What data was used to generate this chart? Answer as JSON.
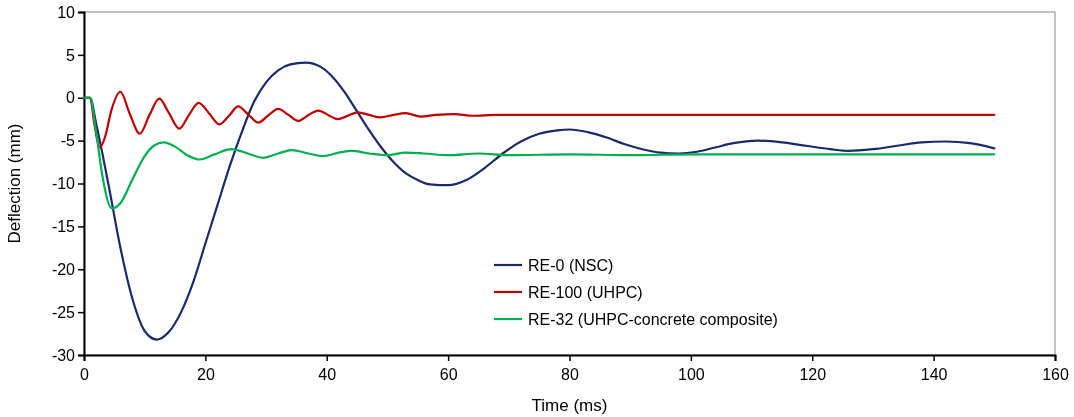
{
  "chart_data": {
    "type": "line",
    "xlabel": "Time (ms)",
    "ylabel": "Deflection (mm)",
    "xlim": [
      0,
      160
    ],
    "xticks": [
      0,
      20,
      40,
      60,
      80,
      100,
      120,
      140,
      160
    ],
    "ylim": [
      -30,
      10
    ],
    "yticks": [
      -30,
      -25,
      -20,
      -15,
      -10,
      -5,
      0,
      5,
      10
    ],
    "grid": false,
    "legend": "bottom",
    "marker": "none",
    "line_style": "solid",
    "series": [
      {
        "name": "RE-0 (NSC)",
        "color": "#1b2a6b",
        "x": [
          0,
          1,
          2,
          4,
          6,
          8,
          10,
          12,
          14,
          16,
          18,
          20,
          22,
          24,
          26,
          28,
          30,
          32,
          34,
          36.5,
          39,
          41,
          43,
          45,
          47,
          49,
          51,
          53,
          55,
          57,
          60,
          63,
          66,
          69,
          72,
          75,
          78,
          80,
          83,
          86,
          89,
          92,
          95,
          98,
          101,
          104,
          107,
          111,
          115,
          119,
          123,
          126,
          130,
          134,
          138,
          142,
          146,
          150
        ],
        "values": [
          0,
          0,
          -3,
          -10,
          -17.5,
          -23.5,
          -27.2,
          -28.2,
          -27.3,
          -25,
          -21.5,
          -17,
          -12.5,
          -8,
          -4,
          -0.5,
          1.8,
          3.2,
          3.9,
          4.1,
          3.6,
          2.4,
          0.6,
          -1.6,
          -3.8,
          -5.8,
          -7.5,
          -8.8,
          -9.6,
          -10.1,
          -10.2,
          -9.6,
          -8.2,
          -6.5,
          -5.1,
          -4.2,
          -3.8,
          -3.7,
          -4,
          -4.6,
          -5.4,
          -6,
          -6.4,
          -6.5,
          -6.3,
          -5.8,
          -5.3,
          -5,
          -5.2,
          -5.6,
          -6,
          -6.2,
          -6,
          -5.6,
          -5.2,
          -5.1,
          -5.3,
          -5.9
        ]
      },
      {
        "name": "RE-100 (UHPC)",
        "color": "#c00000",
        "x": [
          0,
          1,
          1.7,
          2.6,
          3.5,
          4.5,
          6,
          7.5,
          9.2,
          10.8,
          12.4,
          14,
          15.7,
          17.3,
          18.9,
          20.6,
          22.3,
          23.9,
          25.4,
          27,
          28.7,
          30.3,
          32,
          33.7,
          35.3,
          37,
          38.6,
          40.2,
          41.8,
          43.5,
          45.1,
          47,
          48.8,
          51,
          53,
          55.5,
          58,
          61,
          64,
          68,
          75,
          150
        ],
        "values": [
          0,
          0,
          -3,
          -5.8,
          -4.5,
          -1.5,
          0.7,
          -1.8,
          -4.2,
          -2,
          -0.1,
          -1.8,
          -3.6,
          -2,
          -0.6,
          -1.8,
          -3.1,
          -2.1,
          -1,
          -1.9,
          -2.9,
          -2.1,
          -1.3,
          -2,
          -2.7,
          -2,
          -1.5,
          -2,
          -2.5,
          -2.1,
          -1.7,
          -2,
          -2.3,
          -2,
          -1.8,
          -2.2,
          -2,
          -1.9,
          -2.1,
          -2,
          -2,
          -2
        ]
      },
      {
        "name": "RE-32 (UHPC-concrete composite)",
        "color": "#00b050",
        "x": [
          0,
          1,
          2,
          3,
          4.6,
          6,
          8,
          10,
          11.5,
          13.1,
          15,
          17,
          19.1,
          21.5,
          24.3,
          27,
          29.5,
          32,
          34.2,
          37,
          39.4,
          42,
          44.1,
          47,
          50,
          53,
          56,
          60,
          65,
          70,
          80,
          90,
          100,
          120,
          150
        ],
        "values": [
          0,
          0,
          -4,
          -9,
          -12.9,
          -12.3,
          -9.5,
          -6.8,
          -5.6,
          -5.2,
          -5.7,
          -6.7,
          -7.2,
          -6.6,
          -6,
          -6.5,
          -7,
          -6.5,
          -6.1,
          -6.5,
          -6.8,
          -6.4,
          -6.2,
          -6.5,
          -6.7,
          -6.4,
          -6.5,
          -6.7,
          -6.5,
          -6.7,
          -6.6,
          -6.7,
          -6.6,
          -6.6,
          -6.6
        ]
      }
    ]
  }
}
